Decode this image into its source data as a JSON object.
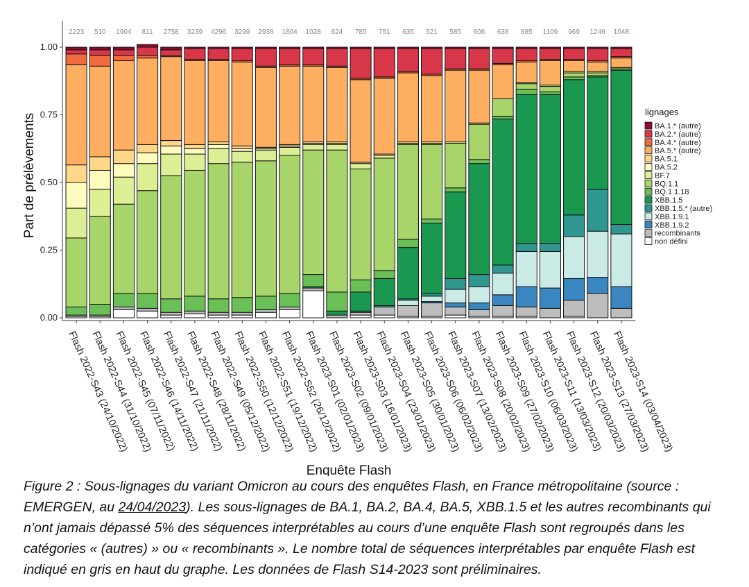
{
  "chart_data": {
    "type": "stacked_bar",
    "y_label": "Part de prélèvements",
    "x_label": "Enquête Flash",
    "legend_title": "lignages",
    "legend_position": "right",
    "ylim": [
      0,
      1
    ],
    "yticks": [
      {
        "value": 0,
        "label": "0.00"
      },
      {
        "value": 0.25,
        "label": "0.25"
      },
      {
        "value": 0.5,
        "label": "0.50"
      },
      {
        "value": 0.75,
        "label": "0.75"
      },
      {
        "value": 1,
        "label": "1.00"
      }
    ],
    "categories": [
      "Flash 2022-S43 (24/10/2022)",
      "Flash 2022-S44 (31/10/2022)",
      "Flash 2022-S45 (07/11/2022)",
      "Flash 2022-S46 (14/11/2022)",
      "Flash 2022-S47 (21/11/2022)",
      "Flash 2022-S48 (28/11/2022)",
      "Flash 2022-S49 (05/12/2022)",
      "Flash 2022-S50 (12/12/2022)",
      "Flash 2022-S51 (19/12/2022)",
      "Flash 2022-S52 (26/12/2022)",
      "Flash 2023-S01 (02/01/2023)",
      "Flash 2023-S02 (09/01/2023)",
      "Flash 2023-S03 (16/01/2023)",
      "Flash 2023-S04 (23/01/2023)",
      "Flash 2023-S05 (30/01/2023)",
      "Flash 2023-S06 (06/02/2023)",
      "Flash 2023-S07 (13/02/2023)",
      "Flash 2023-S08 (20/02/2023)",
      "Flash 2023-S09 (27/02/2023)",
      "Flash 2023-S10 (06/03/2023)",
      "Flash 2023-S11 (13/03/2023)",
      "Flash 2023-S12 (20/03/2023)",
      "Flash 2023-S13 (27/03/2023)",
      "Flash 2023-S14 (03/04/2023)"
    ],
    "sample_counts": [
      2223,
      510,
      1904,
      811,
      2758,
      3239,
      4296,
      3299,
      2938,
      1804,
      1028,
      624,
      785,
      751,
      635,
      521,
      585,
      606,
      638,
      885,
      1109,
      969,
      1246,
      1048
    ],
    "series": [
      {
        "name": "BA.1.* (autre)",
        "color": "#8e0b2f",
        "values": [
          0.01,
          0.01,
          0.01,
          0.01,
          0.01,
          0.005,
          0.005,
          0.005,
          0.005,
          0.005,
          0.005,
          0.005,
          0.005,
          0.005,
          0.005,
          0.005,
          0.005,
          0.005,
          0.005,
          0.005,
          0.005,
          0.005,
          0.005,
          0.005
        ]
      },
      {
        "name": "BA.2.* (autre)",
        "color": "#d8374a",
        "values": [
          0.015,
          0.02,
          0.02,
          0.03,
          0.02,
          0.04,
          0.04,
          0.045,
          0.065,
          0.06,
          0.06,
          0.065,
          0.11,
          0.105,
          0.085,
          0.095,
          0.075,
          0.075,
          0.055,
          0.045,
          0.04,
          0.04,
          0.045,
          0.03
        ]
      },
      {
        "name": "BA.4.* (autre)",
        "color": "#f26b3f",
        "values": [
          0.04,
          0.04,
          0.02,
          0.01,
          0.005,
          0.005,
          0.005,
          0.005,
          0.005,
          0.005,
          0.005,
          0.005,
          0.005,
          0.005,
          0.005,
          0.005,
          0.005,
          0.005,
          0.005,
          0.005,
          0.005,
          0.005,
          0.005,
          0.005
        ]
      },
      {
        "name": "BA.5.* (autre)",
        "color": "#fdae61",
        "values": [
          0.37,
          0.335,
          0.33,
          0.32,
          0.31,
          0.31,
          0.3,
          0.31,
          0.295,
          0.29,
          0.28,
          0.275,
          0.305,
          0.28,
          0.255,
          0.245,
          0.265,
          0.195,
          0.125,
          0.075,
          0.09,
          0.04,
          0.035,
          0.035
        ]
      },
      {
        "name": "BA.5.1",
        "color": "#fed789",
        "values": [
          0.065,
          0.05,
          0.05,
          0.03,
          0.02,
          0.015,
          0.01,
          0.01,
          0.005,
          0.005,
          0.005,
          0.005,
          0.005,
          0.005,
          0.005,
          0.005,
          0,
          0,
          0,
          0,
          0,
          0,
          0,
          0
        ]
      },
      {
        "name": "BA.5.2",
        "color": "#fefcbc",
        "values": [
          0.095,
          0.07,
          0.05,
          0.04,
          0.03,
          0.02,
          0.015,
          0.01,
          0.005,
          0.005,
          0.005,
          0.005,
          0,
          0,
          0,
          0,
          0,
          0,
          0,
          0,
          0,
          0,
          0,
          0
        ]
      },
      {
        "name": "BF.7",
        "color": "#dcef95",
        "values": [
          0.11,
          0.1,
          0.1,
          0.1,
          0.08,
          0.06,
          0.055,
          0.04,
          0.04,
          0.03,
          0.02,
          0.02,
          0.02,
          0.01,
          0.005,
          0.005,
          0.005,
          0.005,
          0,
          0.005,
          0.005,
          0.005,
          0.005,
          0
        ]
      },
      {
        "name": "BQ.1.1",
        "color": "#a8d56a",
        "values": [
          0.255,
          0.325,
          0.33,
          0.38,
          0.455,
          0.465,
          0.5,
          0.5,
          0.5,
          0.51,
          0.46,
          0.525,
          0.41,
          0.415,
          0.35,
          0.275,
          0.165,
          0.13,
          0.065,
          0.02,
          0.02,
          0.015,
          0.01,
          0.005
        ]
      },
      {
        "name": "BQ.1.1.18",
        "color": "#6bbf57",
        "values": [
          0.03,
          0.04,
          0.05,
          0.055,
          0.05,
          0.055,
          0.05,
          0.055,
          0.05,
          0.05,
          0.045,
          0.07,
          0.045,
          0.03,
          0.03,
          0.015,
          0.015,
          0.015,
          0.01,
          0.02,
          0.01,
          0.01,
          0.005,
          0.005
        ]
      },
      {
        "name": "XBB.1.5",
        "color": "#1a9850",
        "values": [
          0,
          0,
          0,
          0,
          0,
          0,
          0,
          0,
          0,
          0,
          0.005,
          0.015,
          0.07,
          0.1,
          0.19,
          0.26,
          0.32,
          0.41,
          0.54,
          0.55,
          0.55,
          0.5,
          0.415,
          0.57
        ]
      },
      {
        "name": "XBB.1.5.* (autre)",
        "color": "#2f9690",
        "values": [
          0,
          0,
          0,
          0,
          0,
          0,
          0,
          0,
          0,
          0,
          0,
          0,
          0.005,
          0.005,
          0.005,
          0.01,
          0.04,
          0.045,
          0.03,
          0.03,
          0.03,
          0.08,
          0.155,
          0.035
        ]
      },
      {
        "name": "XBB.1.9.1",
        "color": "#c9eae5",
        "values": [
          0,
          0,
          0,
          0,
          0,
          0,
          0,
          0,
          0,
          0,
          0,
          0,
          0,
          0,
          0.02,
          0.02,
          0.05,
          0.06,
          0.08,
          0.13,
          0.135,
          0.155,
          0.17,
          0.195
        ]
      },
      {
        "name": "XBB.1.9.2",
        "color": "#3a86c0",
        "values": [
          0,
          0,
          0,
          0,
          0,
          0,
          0,
          0,
          0,
          0,
          0,
          0,
          0,
          0,
          0,
          0.005,
          0.015,
          0.025,
          0.04,
          0.075,
          0.075,
          0.08,
          0.06,
          0.08
        ]
      },
      {
        "name": "recombinants",
        "color": "#bdbdbd",
        "values": [
          0.005,
          0.005,
          0.01,
          0.01,
          0.01,
          0.01,
          0.01,
          0.01,
          0.01,
          0.01,
          0.01,
          0.01,
          0.01,
          0.03,
          0.04,
          0.05,
          0.03,
          0.025,
          0.04,
          0.035,
          0.035,
          0.06,
          0.09,
          0.035
        ]
      },
      {
        "name": "non défini",
        "color": "#ffffff",
        "values": [
          0.005,
          0.005,
          0.03,
          0.025,
          0.01,
          0.015,
          0.01,
          0.01,
          0.02,
          0.03,
          0.1,
          0,
          0.01,
          0.01,
          0.005,
          0.005,
          0.01,
          0.005,
          0.005,
          0.005,
          0,
          0.005,
          0,
          0
        ]
      }
    ]
  },
  "caption": {
    "before": "Figure 2 : Sous-lignages du variant Omicron au cours des enquêtes Flash, en France métropolitaine (source : EMERGEN, au ",
    "underlined": "24/04/2023",
    "after": "). Les sous-lignages de BA.1, BA.2, BA.4, BA.5, XBB.1.5 et les autres recombinants qui n’ont jamais dépassé 5% des séquences interprétables au cours d’une enquête Flash sont regroupés dans les catégories « (autres) » ou « recombinants ». Le nombre total de séquences interprétables par enquête Flash est indiqué en gris en haut du graphe. Les données de Flash S14-2023 sont préliminaires."
  }
}
